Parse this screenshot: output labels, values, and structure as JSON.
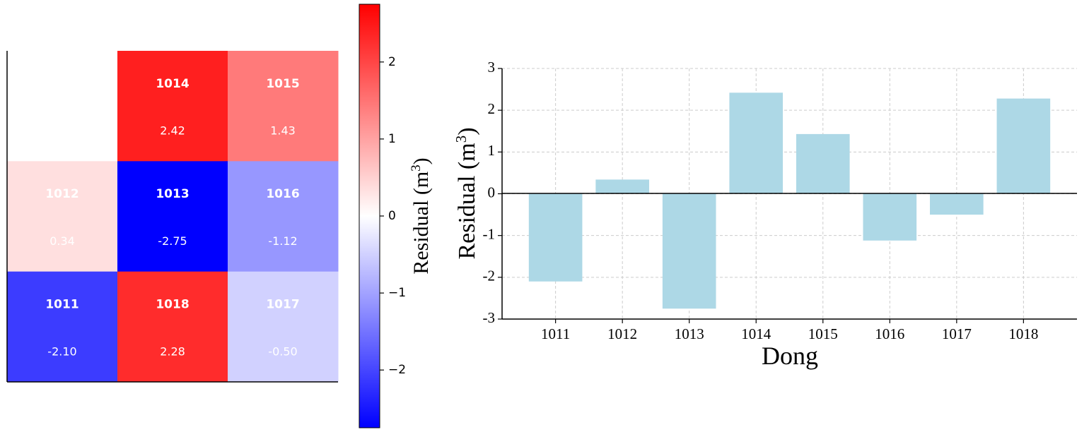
{
  "chart_data": [
    {
      "type": "heatmap",
      "title": "",
      "rows": 3,
      "cols": 3,
      "cells": [
        {
          "row": 0,
          "col": 1,
          "label": "1014",
          "value": 2.42,
          "value_text": "2.42"
        },
        {
          "row": 0,
          "col": 2,
          "label": "1015",
          "value": 1.43,
          "value_text": "1.43"
        },
        {
          "row": 1,
          "col": 0,
          "label": "1012",
          "value": 0.34,
          "value_text": "0.34"
        },
        {
          "row": 1,
          "col": 1,
          "label": "1013",
          "value": -2.75,
          "value_text": "-2.75"
        },
        {
          "row": 1,
          "col": 2,
          "label": "1016",
          "value": -1.12,
          "value_text": "-1.12"
        },
        {
          "row": 2,
          "col": 0,
          "label": "1011",
          "value": -2.1,
          "value_text": "-2.10"
        },
        {
          "row": 2,
          "col": 1,
          "label": "1018",
          "value": 2.28,
          "value_text": "2.28"
        },
        {
          "row": 2,
          "col": 2,
          "label": "1017",
          "value": -0.5,
          "value_text": "-0.50"
        }
      ],
      "colormap": "bwr",
      "colorbar": {
        "range": [
          -2.75,
          2.75
        ],
        "ticks": [
          2,
          1,
          0,
          -1,
          -2
        ],
        "tick_labels": [
          "2",
          "1",
          "0",
          "−1",
          "−2"
        ],
        "label_main": "Residual (m",
        "label_sup": "3",
        "label_close": ")"
      },
      "colors": {
        "low": "#0000ff",
        "mid": "#ffffff",
        "high": "#ff0000"
      }
    },
    {
      "type": "bar",
      "categories": [
        "1011",
        "1012",
        "1013",
        "1014",
        "1015",
        "1016",
        "1017",
        "1018"
      ],
      "values": [
        -2.1,
        0.34,
        -2.75,
        2.42,
        1.43,
        -1.12,
        -0.5,
        2.28
      ],
      "xlabel": "Dong",
      "ylabel_main": "Residual (m",
      "ylabel_sup": "3",
      "ylabel_close": ")",
      "ylim": [
        -3,
        3
      ],
      "yticks": [
        3,
        2,
        1,
        0,
        -1,
        -2,
        -3
      ],
      "ytick_labels": [
        "3",
        "2",
        "1",
        "0",
        "-1",
        "-2",
        "-3"
      ],
      "grid": true,
      "bar_color": "#add8e6"
    }
  ]
}
